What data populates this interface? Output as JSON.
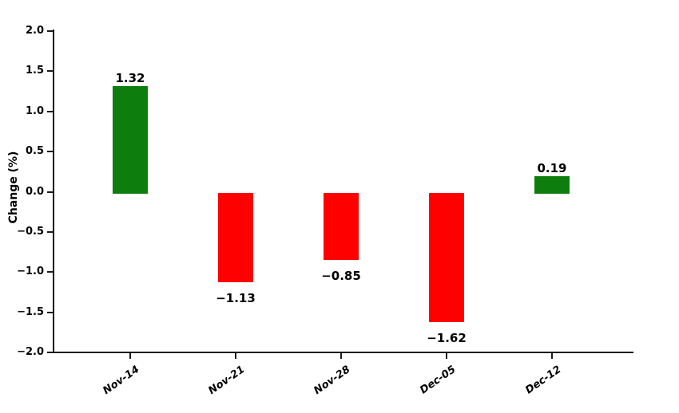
{
  "chart_data": {
    "type": "bar",
    "title": "",
    "xlabel": "",
    "ylabel": "Change (%)",
    "categories": [
      "Nov-14",
      "Nov-21",
      "Nov-28",
      "Dec-05",
      "Dec-12"
    ],
    "values": [
      1.32,
      -1.13,
      -0.85,
      -1.62,
      0.19
    ],
    "value_labels": [
      "1.32",
      "−1.13",
      "−0.85",
      "−1.62",
      "0.19"
    ],
    "yticks": [
      2.0,
      1.5,
      1.0,
      0.5,
      0.0,
      -0.5,
      -1.0,
      -1.5,
      -2.0
    ],
    "ytick_labels": [
      "2.0",
      "1.5",
      "1.0",
      "0.5",
      "0.0",
      "−0.5",
      "−1.0",
      "−1.5",
      "−2.0"
    ],
    "ylim": [
      -2.0,
      2.0
    ],
    "grid": false,
    "legend": null,
    "positive_color": "#0d7e0d",
    "negative_color": "#ff0000",
    "zero_line_color": "#808080",
    "axis_color": "#1a1a1a",
    "bar_orientation": "vertical",
    "value_label_position": "outside-end"
  }
}
